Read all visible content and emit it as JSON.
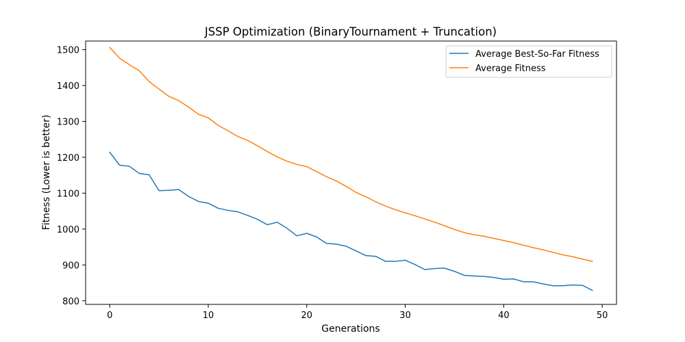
{
  "chart_data": {
    "type": "line",
    "title": "JSSP Optimization (BinaryTournament + Truncation)",
    "xlabel": "Generations",
    "ylabel": "Fitness (Lower is better)",
    "xlim": [
      -2.45,
      51.45
    ],
    "ylim": [
      790,
      1524
    ],
    "xticks": [
      0,
      10,
      20,
      30,
      40,
      50
    ],
    "yticks": [
      800,
      900,
      1000,
      1100,
      1200,
      1300,
      1400,
      1500
    ],
    "grid": false,
    "legend_position": "top-right",
    "x": [
      0,
      1,
      2,
      3,
      4,
      5,
      6,
      7,
      8,
      9,
      10,
      11,
      12,
      13,
      14,
      15,
      16,
      17,
      18,
      19,
      20,
      21,
      22,
      23,
      24,
      25,
      26,
      27,
      28,
      29,
      30,
      31,
      32,
      33,
      34,
      35,
      36,
      37,
      38,
      39,
      40,
      41,
      42,
      43,
      44,
      45,
      46,
      47,
      48,
      49
    ],
    "series": [
      {
        "name": "Average Best-So-Far Fitness",
        "color": "#1f77b4",
        "values": [
          1214,
          1178,
          1175,
          1155,
          1151,
          1107,
          1108,
          1110,
          1091,
          1077,
          1072,
          1058,
          1052,
          1048,
          1038,
          1027,
          1012,
          1019,
          1002,
          981,
          988,
          978,
          960,
          958,
          952,
          939,
          926,
          924,
          910,
          910,
          913,
          901,
          887,
          890,
          891,
          882,
          871,
          869,
          868,
          865,
          860,
          861,
          853,
          853,
          847,
          842,
          842,
          844,
          843,
          829
        ],
        "final_marker": false
      },
      {
        "name": "Average Fitness",
        "color": "#ff7f0e",
        "values": [
          1506,
          1476,
          1458,
          1441,
          1411,
          1390,
          1370,
          1358,
          1340,
          1320,
          1310,
          1289,
          1274,
          1258,
          1247,
          1232,
          1216,
          1201,
          1189,
          1180,
          1174,
          1160,
          1146,
          1134,
          1119,
          1102,
          1090,
          1076,
          1064,
          1054,
          1045,
          1037,
          1028,
          1019,
          1009,
          999,
          990,
          984,
          980,
          974,
          968,
          962,
          955,
          948,
          942,
          935,
          928,
          923,
          916,
          910
        ]
      }
    ]
  }
}
